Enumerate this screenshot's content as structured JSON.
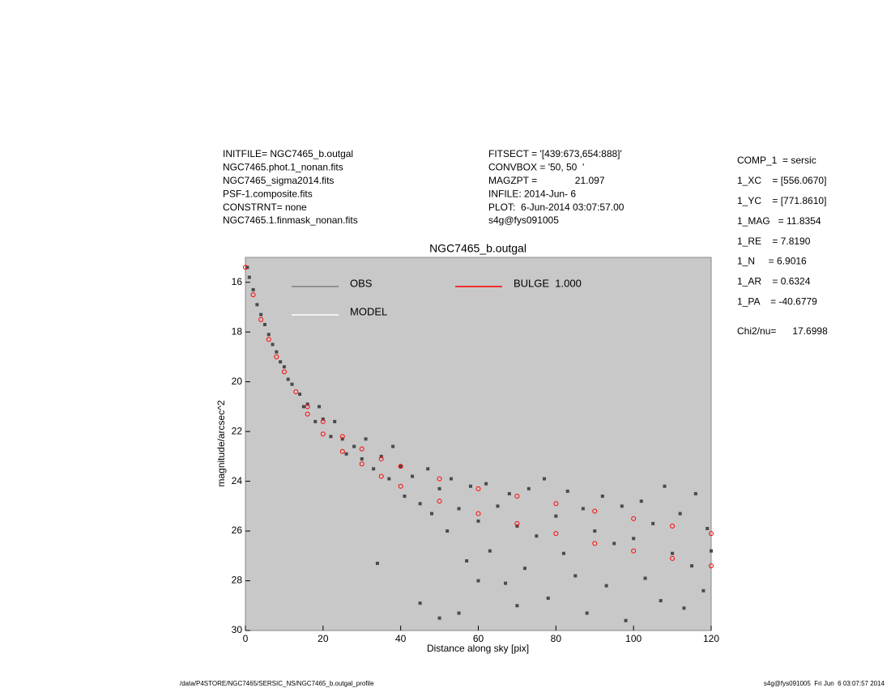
{
  "chart_data": {
    "type": "scatter",
    "title": "NGC7465_b.outgal",
    "xlabel": "Distance along sky [pix]",
    "ylabel": "magnitude/arcsec^2",
    "xlim": [
      0,
      120
    ],
    "ylim": [
      30,
      15
    ],
    "xticks": [
      0,
      20,
      40,
      60,
      80,
      100,
      120
    ],
    "yticks": [
      16,
      18,
      20,
      22,
      24,
      26,
      28,
      30
    ],
    "background": "#c8c8c8",
    "info_left": [
      "INITFILE= NGC7465_b.outgal",
      "NGC7465.phot.1_nonan.fits",
      "NGC7465_sigma2014.fits",
      "PSF-1.composite.fits",
      "CONSTRNT= none",
      "NGC7465.1.finmask_nonan.fits"
    ],
    "info_middle": [
      "FITSECT = '[439:673,654:888]'",
      "CONVBOX = '50, 50  '",
      "MAGZPT =              21.097",
      "INFILE: 2014-Jun- 6",
      "PLOT:  6-Jun-2014 03:07:57.00",
      "s4g@fys091005"
    ],
    "params": [
      "COMP_1  = sersic",
      "1_XC    = [556.0670]",
      "1_YC    = [771.8610]",
      "1_MAG   = 11.8354",
      "1_RE    = 7.8190",
      "1_N     = 6.9016",
      "1_AR    = 0.6324",
      "1_PA    = -40.6779"
    ],
    "chi2": "Chi2/nu=      17.6998",
    "footer_left": "/data/P4STORE/NGC7465/SERSIC_NS/NGC7465_b.outgal_profile",
    "footer_right": "s4g@fys091005  Fri Jun  6 03:07:57 2014",
    "series": [
      {
        "name": "OBS",
        "color": "#4a4a4a",
        "x": [
          0.5,
          1,
          2,
          3,
          4,
          5,
          6,
          7,
          8,
          9,
          10,
          11,
          12,
          14,
          15,
          16,
          18,
          19,
          20,
          22,
          23,
          25,
          26,
          28,
          30,
          31,
          33,
          35,
          37,
          38,
          40,
          41,
          43,
          45,
          47,
          48,
          50,
          52,
          53,
          55,
          57,
          58,
          60,
          62,
          63,
          65,
          67,
          68,
          70,
          72,
          73,
          75,
          77,
          78,
          80,
          82,
          83,
          85,
          87,
          88,
          90,
          92,
          93,
          95,
          97,
          98,
          100,
          102,
          103,
          105,
          107,
          108,
          110,
          112,
          113,
          115,
          116,
          118,
          119,
          120,
          34,
          45,
          50,
          55,
          60,
          70
        ],
        "values": [
          15.4,
          15.8,
          16.3,
          16.9,
          17.3,
          17.7,
          18.1,
          18.5,
          18.8,
          19.2,
          19.4,
          19.9,
          20.1,
          20.5,
          21.0,
          20.9,
          21.6,
          21.0,
          21.5,
          22.2,
          21.6,
          22.3,
          22.9,
          22.6,
          23.1,
          22.3,
          23.5,
          23.0,
          23.9,
          22.6,
          23.4,
          24.6,
          23.8,
          24.9,
          23.5,
          25.3,
          24.3,
          26.0,
          23.9,
          25.1,
          27.2,
          24.2,
          25.6,
          24.1,
          26.8,
          25.0,
          28.1,
          24.5,
          25.8,
          27.5,
          24.3,
          26.2,
          23.9,
          28.7,
          25.4,
          26.9,
          24.4,
          27.8,
          25.1,
          29.3,
          26.0,
          24.6,
          28.2,
          26.5,
          25.0,
          29.6,
          26.3,
          24.8,
          27.9,
          25.7,
          28.8,
          24.2,
          26.9,
          25.3,
          29.1,
          27.4,
          24.5,
          28.4,
          25.9,
          26.8,
          27.3,
          28.9,
          29.5,
          29.3,
          28.0,
          29.0
        ]
      },
      {
        "name": "MODEL",
        "color": "#ffffff",
        "x": [],
        "values": []
      },
      {
        "name": "BULGE  1.000",
        "color": "#ff0000",
        "x": [
          0,
          2,
          4,
          6,
          8,
          10,
          13,
          16,
          16,
          20,
          20,
          25,
          25,
          30,
          30,
          35,
          35,
          40,
          40,
          50,
          50,
          60,
          60,
          70,
          70,
          80,
          80,
          90,
          90,
          100,
          100,
          110,
          110,
          120,
          120
        ],
        "values": [
          15.4,
          16.5,
          17.5,
          18.3,
          19.0,
          19.6,
          20.4,
          21.0,
          21.3,
          21.6,
          22.1,
          22.2,
          22.8,
          22.7,
          23.3,
          23.1,
          23.8,
          23.4,
          24.2,
          23.9,
          24.8,
          24.3,
          25.3,
          24.6,
          25.7,
          24.9,
          26.1,
          25.2,
          26.5,
          25.5,
          26.8,
          25.8,
          27.1,
          26.1,
          27.4
        ]
      }
    ]
  }
}
